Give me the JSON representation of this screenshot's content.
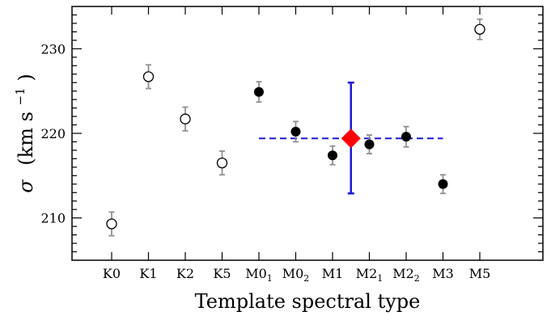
{
  "chart_data": {
    "type": "scatter",
    "title": "",
    "xlabel": "Template spectral type",
    "ylabel": {
      "symbol": "σ",
      "open": "(km s",
      "superscript": "−1",
      "close": ")"
    },
    "ylim": [
      205,
      235
    ],
    "yticks": [
      210,
      220,
      230
    ],
    "categories": [
      {
        "main": "K0",
        "sub": ""
      },
      {
        "main": "K1",
        "sub": ""
      },
      {
        "main": "K2",
        "sub": ""
      },
      {
        "main": "K5",
        "sub": ""
      },
      {
        "main": "M0",
        "sub": "1"
      },
      {
        "main": "M0",
        "sub": "2"
      },
      {
        "main": "M1",
        "sub": ""
      },
      {
        "main": "M2",
        "sub": "1"
      },
      {
        "main": "M2",
        "sub": "2"
      },
      {
        "main": "M3",
        "sub": ""
      },
      {
        "main": "M5",
        "sub": ""
      }
    ],
    "series": [
      {
        "marker": "open-circle",
        "points": [
          {
            "x": 0,
            "y": 209.3,
            "err": 1.4
          },
          {
            "x": 1,
            "y": 226.7,
            "err": 1.4
          },
          {
            "x": 2,
            "y": 221.7,
            "err": 1.4
          },
          {
            "x": 3,
            "y": 216.5,
            "err": 1.4
          },
          {
            "x": 10,
            "y": 232.3,
            "err": 1.2
          }
        ]
      },
      {
        "marker": "filled-circle",
        "points": [
          {
            "x": 4,
            "y": 224.9,
            "err": 1.2
          },
          {
            "x": 5,
            "y": 220.2,
            "err": 1.2
          },
          {
            "x": 6,
            "y": 217.4,
            "err": 1.1
          },
          {
            "x": 7,
            "y": 218.7,
            "err": 1.1
          },
          {
            "x": 8,
            "y": 219.6,
            "err": 1.2
          },
          {
            "x": 9,
            "y": 214.0,
            "err": 1.1
          }
        ]
      }
    ],
    "mean": {
      "marker": "red-diamond",
      "x": 6.5,
      "y": 219.4,
      "yerr_low": 6.5,
      "yerr_high": 6.6,
      "line_x_range": [
        4,
        9
      ],
      "line_style": "dashed"
    },
    "grid": false,
    "colors": {
      "error_bar": "#909090",
      "mean_line": "#1a1ad6",
      "mean_marker": "#ff0000"
    }
  }
}
